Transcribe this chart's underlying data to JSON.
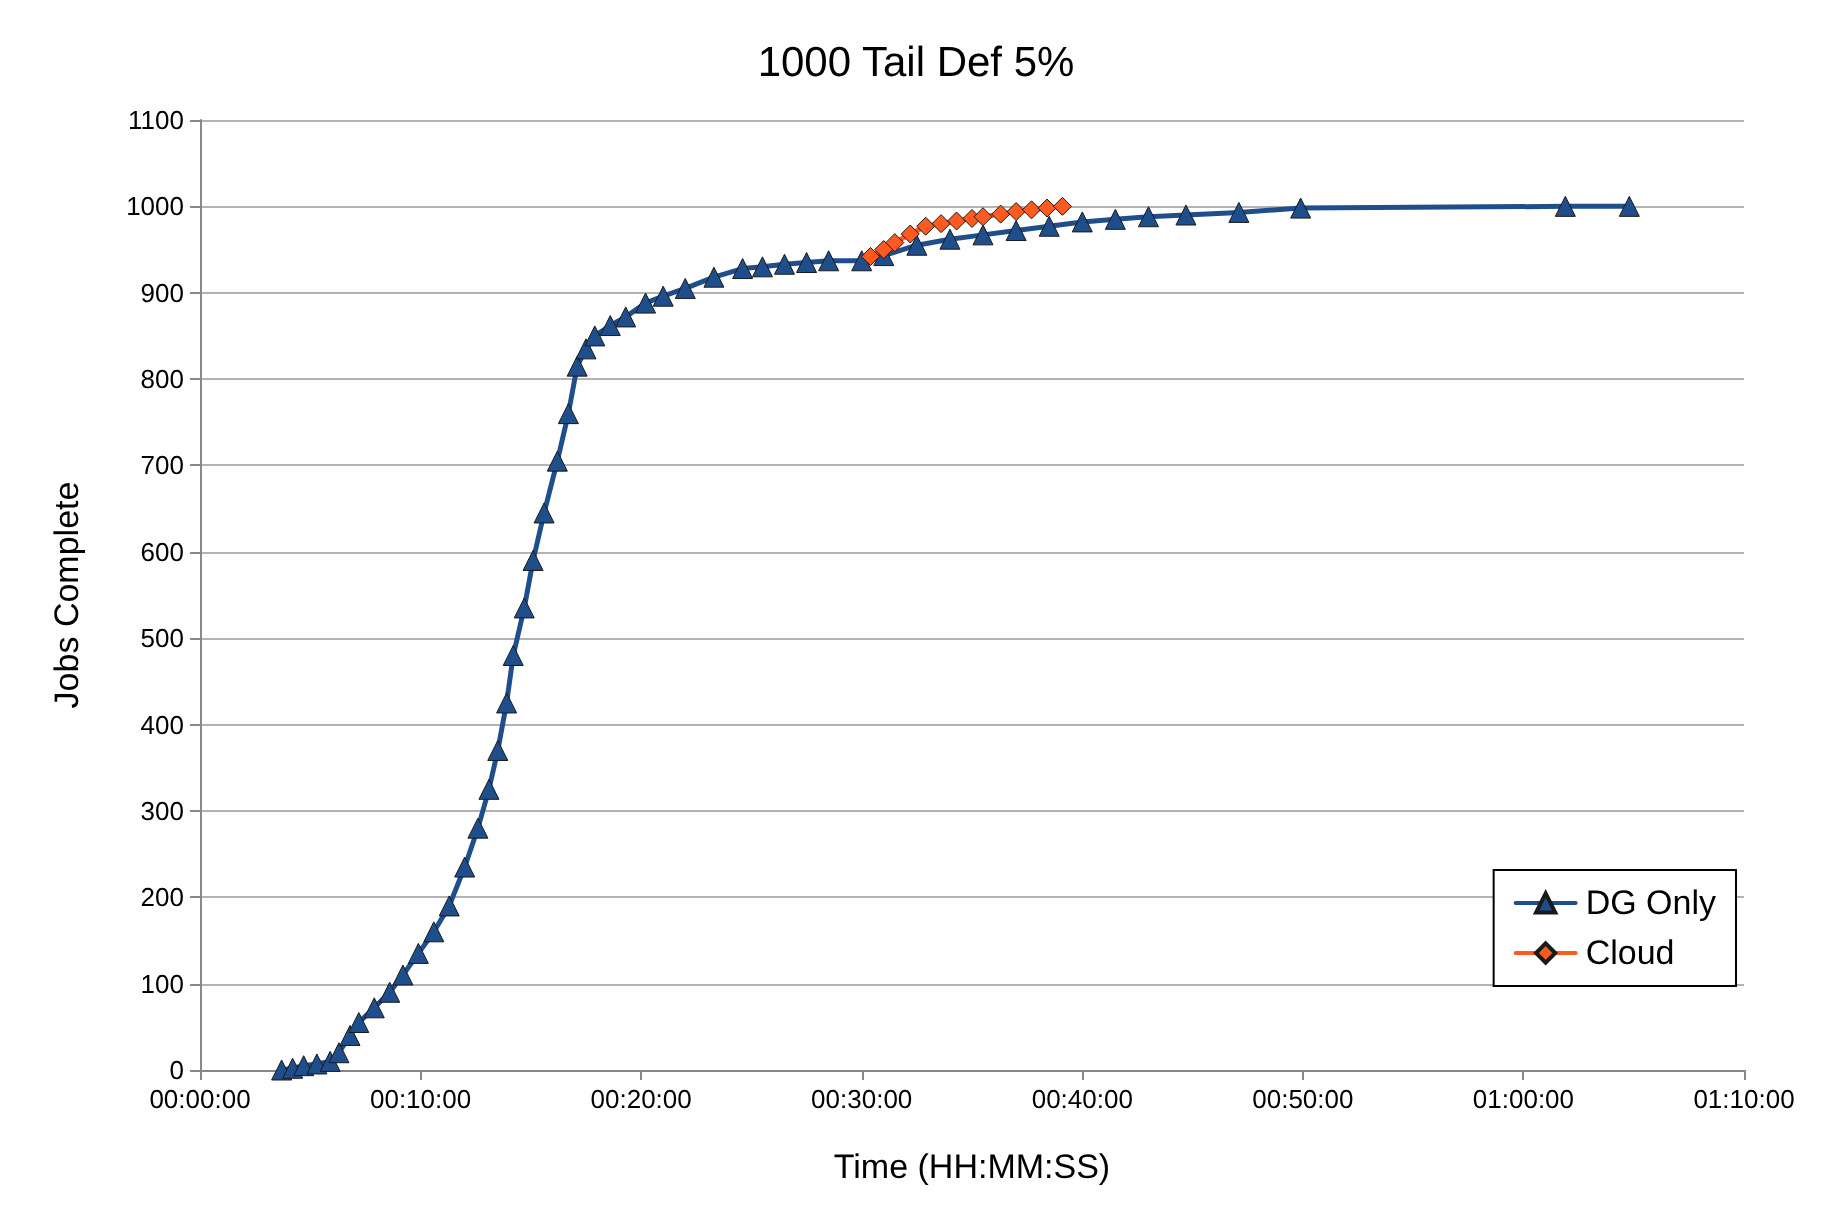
{
  "chart_data": {
    "type": "line",
    "title": "1000 Tail Def 5%",
    "xlabel": "Time (HH:MM:SS)",
    "ylabel": "Jobs Complete",
    "xlim": [
      0,
      70
    ],
    "xticks": [
      {
        "value": 0,
        "label": "00:00:00"
      },
      {
        "value": 10,
        "label": "00:10:00"
      },
      {
        "value": 20,
        "label": "00:20:00"
      },
      {
        "value": 30,
        "label": "00:30:00"
      },
      {
        "value": 40,
        "label": "00:40:00"
      },
      {
        "value": 50,
        "label": "00:50:00"
      },
      {
        "value": 60,
        "label": "01:00:00"
      },
      {
        "value": 70,
        "label": "01:10:00"
      }
    ],
    "ylim": [
      0,
      1100
    ],
    "yticks": [
      0,
      100,
      200,
      300,
      400,
      500,
      600,
      700,
      800,
      900,
      1000,
      1100
    ],
    "grid": "y",
    "legend": "bottom right",
    "line_style": "solid",
    "series": [
      {
        "name": "DG Only",
        "color": "#1f4e8c",
        "marker": "triangle",
        "x": [
          3.7,
          4.2,
          4.7,
          5.3,
          5.9,
          6.3,
          6.8,
          7.2,
          7.9,
          8.6,
          9.2,
          9.9,
          10.6,
          11.3,
          12,
          12.6,
          13.1,
          13.5,
          13.9,
          14.2,
          14.7,
          15.1,
          15.6,
          16.2,
          16.7,
          17.1,
          17.5,
          17.9,
          18.6,
          19.3,
          20.2,
          21,
          22,
          23.3,
          24.6,
          25.5,
          26.5,
          27.5,
          28.5,
          30,
          31,
          32.5,
          34,
          35.5,
          37,
          38.5,
          40,
          41.5,
          43,
          44.7,
          47.1,
          49.9,
          61.9,
          64.8
        ],
        "values": [
          0,
          2,
          5,
          7,
          10,
          20,
          40,
          55,
          72,
          90,
          110,
          135,
          160,
          190,
          235,
          280,
          325,
          370,
          425,
          480,
          535,
          590,
          645,
          705,
          760,
          815,
          835,
          850,
          862,
          872,
          888,
          896,
          905,
          918,
          928,
          930,
          933,
          935,
          937,
          937,
          943,
          955,
          962,
          967,
          972,
          977,
          982,
          985,
          988,
          990,
          993,
          998,
          1000,
          1000
        ]
      },
      {
        "name": "Cloud",
        "color": "#ff5a1f",
        "marker": "diamond",
        "x": [
          30.4,
          31,
          31.5,
          32.2,
          32.9,
          33.6,
          34.3,
          35,
          35.5,
          36.3,
          37,
          37.7,
          38.4,
          39.1
        ],
        "values": [
          942,
          950,
          958,
          968,
          977,
          980,
          983,
          986,
          988,
          991,
          994,
          996,
          998,
          1000
        ]
      }
    ]
  }
}
